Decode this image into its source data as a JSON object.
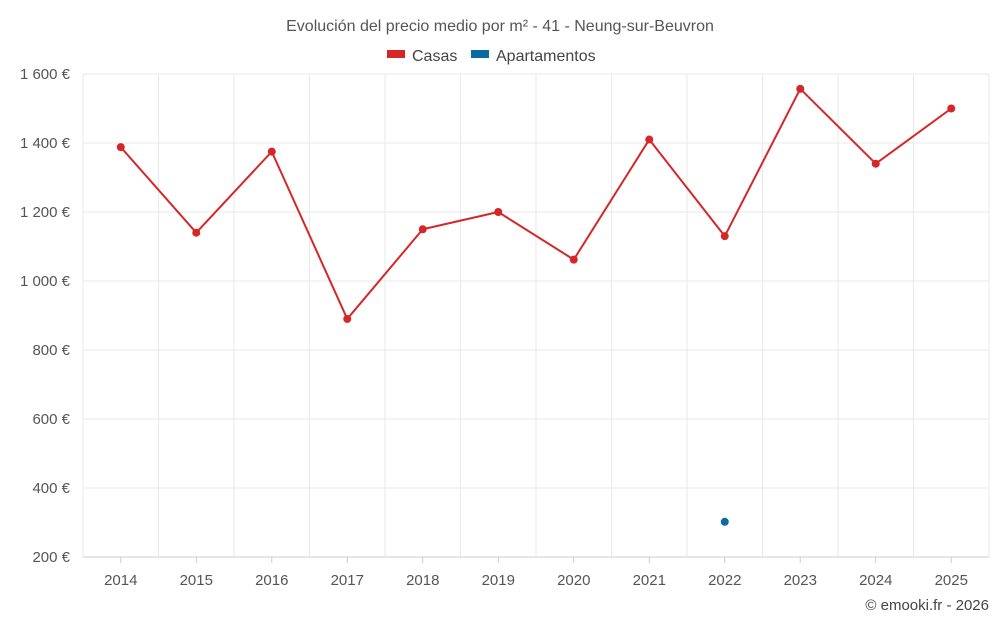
{
  "chart_data": {
    "type": "line",
    "title": "Evolución del precio medio por m² - 41 - Neung-sur-Beuvron",
    "x": [
      "2014",
      "2015",
      "2016",
      "2017",
      "2018",
      "2019",
      "2020",
      "2021",
      "2022",
      "2023",
      "2024",
      "2025"
    ],
    "series": [
      {
        "name": "Casas",
        "color": "#d62728",
        "values": [
          1388,
          1140,
          1375,
          890,
          1150,
          1200,
          1062,
          1410,
          1130,
          1557,
          1340,
          1500
        ]
      },
      {
        "name": "Apartamentos",
        "color": "#0b6aa2",
        "values": [
          null,
          null,
          null,
          null,
          null,
          null,
          null,
          null,
          302,
          null,
          null,
          null
        ]
      }
    ],
    "yticks": [
      "200 €",
      "400 €",
      "600 €",
      "800 €",
      "1 000 €",
      "1 200 €",
      "1 400 €",
      "1 600 €"
    ],
    "ylim": [
      200,
      1600
    ],
    "grid": true,
    "legend_position": "top-center"
  },
  "credit": "© emooki.fr - 2026"
}
